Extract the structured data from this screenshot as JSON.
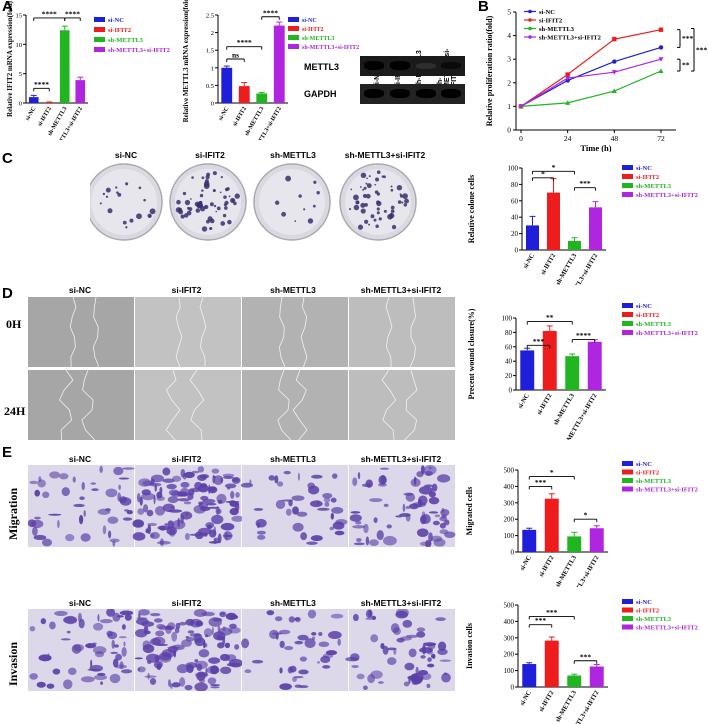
{
  "panels": {
    "A": "A",
    "B": "B",
    "C": "C",
    "D": "D",
    "E": "E"
  },
  "groups": [
    "si-NC",
    "si-IFIT2",
    "sh-METTL3",
    "sh-METTL3+si-IFIT2"
  ],
  "colors": {
    "nc": "#1f1fd9",
    "ifit2": "#ee1c1c",
    "mettl3": "#22b522",
    "combo": "#b026e0"
  },
  "western": {
    "bands": [
      "METTL3",
      "GAPDH"
    ]
  },
  "rows": {
    "d": [
      "0H",
      "24H"
    ],
    "e": [
      "Migration",
      "Invasion"
    ]
  },
  "chart_data": [
    {
      "id": "a1",
      "type": "bar",
      "categories": [
        "si-NC",
        "si-IFIT2",
        "sh-METTL3",
        "sh-METTL3+si-IFIT2"
      ],
      "values": [
        1.0,
        0.12,
        12.4,
        3.9
      ],
      "errors": [
        0.3,
        0.05,
        0.7,
        0.5
      ],
      "ylabel": "Relative IFIT2 mRNA expression(fold)",
      "ylim": [
        0,
        15
      ],
      "yticks": [
        0,
        5,
        10,
        15
      ],
      "legend": [
        "si-NC",
        "si-IFIT2",
        "sh-METTL3",
        "sh-METTL3+si-IFIT2"
      ],
      "annotations": [
        "****",
        "****",
        "****"
      ]
    },
    {
      "id": "a2",
      "type": "bar",
      "categories": [
        "si-NC",
        "si-IFIT2",
        "sh-METTL3",
        "sh-METTL3+si-IFIT2"
      ],
      "values": [
        1.0,
        0.48,
        0.27,
        2.2
      ],
      "errors": [
        0.05,
        0.1,
        0.03,
        0.1
      ],
      "ylabel": "Relative METTL3 mRNA expression(fold)",
      "ylim": [
        0,
        2.5
      ],
      "yticks": [
        0.0,
        0.5,
        1.0,
        1.5,
        2.0,
        2.5
      ],
      "legend": [
        "si-NC",
        "si-IFIT2",
        "sh-METTL3",
        "sh-METTL3+si-IFIT2"
      ],
      "annotations": [
        "ns",
        "****",
        "****"
      ]
    },
    {
      "id": "b",
      "type": "line",
      "x": [
        0,
        24,
        48,
        72
      ],
      "xticks": [
        0,
        24,
        48,
        72
      ],
      "xlabel": "Time (h)",
      "ylabel": "Relative proliferation ratio(fold)",
      "ylim": [
        0,
        5
      ],
      "yticks": [
        0,
        1,
        2,
        3,
        4,
        5
      ],
      "series": [
        {
          "name": "si-NC",
          "values": [
            1.0,
            2.1,
            2.9,
            3.5
          ]
        },
        {
          "name": "si-IFIT2",
          "values": [
            1.0,
            2.35,
            3.85,
            4.25
          ]
        },
        {
          "name": "sh-METTL3",
          "values": [
            1.0,
            1.15,
            1.65,
            2.5
          ]
        },
        {
          "name": "sh-METTL3+si-IFIT2",
          "values": [
            1.0,
            2.2,
            2.45,
            3.0
          ]
        }
      ],
      "annotations": [
        "***",
        "**",
        "***"
      ]
    },
    {
      "id": "c",
      "type": "bar",
      "categories": [
        "si-NC",
        "si-IFIT2",
        "sh-METTL3",
        "sh-METTL3+si-IFIT2"
      ],
      "values": [
        30,
        70,
        11,
        52
      ],
      "errors": [
        11,
        17,
        4,
        7
      ],
      "ylabel": "Relative colone cells",
      "ylim": [
        0,
        100
      ],
      "yticks": [
        0,
        20,
        40,
        60,
        80,
        100
      ],
      "legend": [
        "si-NC",
        "si-IFIT2",
        "sh-METTL3",
        "sh-METTL3+si-IFIT2"
      ],
      "annotations": [
        "*",
        "*",
        "***"
      ]
    },
    {
      "id": "d",
      "type": "bar",
      "categories": [
        "si-NC",
        "si-IFIT2",
        "sh-METTL3",
        "sh-METTL3+si-IFIT2"
      ],
      "values": [
        55,
        82,
        47,
        67
      ],
      "errors": [
        3,
        7,
        3,
        3
      ],
      "ylabel": "Precent wound closure(%)",
      "ylim": [
        0,
        100
      ],
      "yticks": [
        0,
        20,
        40,
        60,
        80,
        100
      ],
      "legend": [
        "si-NC",
        "si-IFIT2",
        "sh-METTL3",
        "sh-METTL3+si-IFIT2"
      ],
      "annotations": [
        "***",
        "**",
        "****"
      ]
    },
    {
      "id": "e1",
      "type": "bar",
      "categories": [
        "si-NC",
        "si-IFIT2",
        "sh-METTL3",
        "sh-METTL3+si-IFIT2"
      ],
      "values": [
        135,
        325,
        95,
        145
      ],
      "errors": [
        10,
        30,
        25,
        15
      ],
      "ylabel": "Migrated cells",
      "ylim": [
        0,
        500
      ],
      "yticks": [
        0,
        100,
        200,
        300,
        400,
        500
      ],
      "legend": [
        "si-NC",
        "si-IFIT2",
        "sh-METTL3",
        "sh-METTL3+si-IFIT2"
      ],
      "annotations": [
        "***",
        "*",
        "*"
      ]
    },
    {
      "id": "e2",
      "type": "bar",
      "categories": [
        "si-NC",
        "si-IFIT2",
        "sh-METTL3",
        "sh-METTL3+si-IFIT2"
      ],
      "values": [
        140,
        283,
        70,
        125
      ],
      "errors": [
        8,
        22,
        8,
        12
      ],
      "ylabel": "Invasion cells",
      "ylim": [
        0,
        500
      ],
      "yticks": [
        0,
        100,
        200,
        300,
        400,
        500
      ],
      "legend": [
        "si-NC",
        "si-IFIT2",
        "sh-METTL3",
        "sh-METTL3+si-IFIT2"
      ],
      "annotations": [
        "***",
        "***",
        "***"
      ]
    }
  ]
}
